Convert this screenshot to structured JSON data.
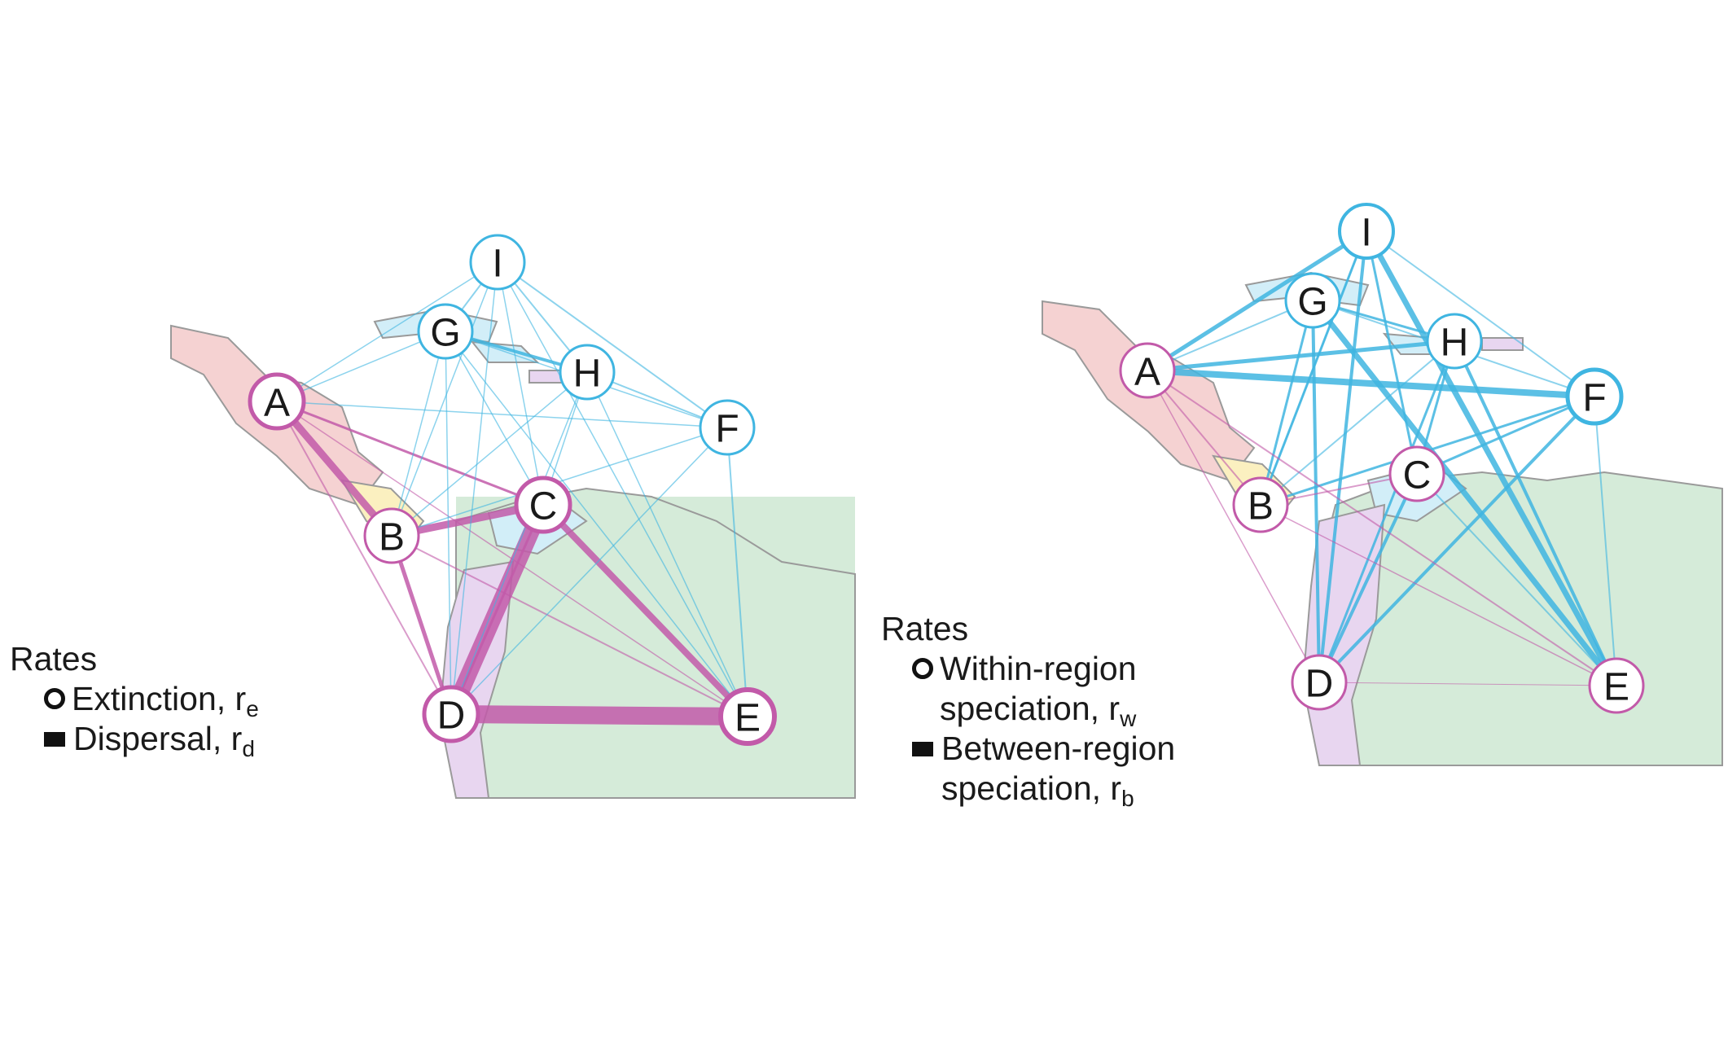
{
  "colors": {
    "purple": "#c25aa9",
    "blue": "#3fb5e1",
    "land_green": "#d5ebd9",
    "land_pink": "#f5d2d2",
    "land_yellow": "#fbf0c0",
    "land_lilac": "#e8d6f0",
    "land_cyan": "#d2eef8",
    "land_outline": "#9a9a9a"
  },
  "panels": [
    {
      "id": "left",
      "nodes": [
        {
          "label": "A",
          "color": "purple"
        },
        {
          "label": "B",
          "color": "purple"
        },
        {
          "label": "C",
          "color": "purple"
        },
        {
          "label": "D",
          "color": "purple"
        },
        {
          "label": "E",
          "color": "purple"
        },
        {
          "label": "F",
          "color": "blue"
        },
        {
          "label": "G",
          "color": "blue"
        },
        {
          "label": "H",
          "color": "blue"
        },
        {
          "label": "I",
          "color": "blue"
        }
      ],
      "legend": {
        "title": "Rates",
        "items": [
          {
            "symbol": "circle",
            "text": "Extinction, r",
            "sub": "e"
          },
          {
            "symbol": "square",
            "text": "Dispersal, r",
            "sub": "d"
          }
        ]
      }
    },
    {
      "id": "right",
      "nodes": [
        {
          "label": "A",
          "color": "purple"
        },
        {
          "label": "B",
          "color": "purple"
        },
        {
          "label": "C",
          "color": "purple"
        },
        {
          "label": "D",
          "color": "purple"
        },
        {
          "label": "E",
          "color": "purple"
        },
        {
          "label": "F",
          "color": "blue"
        },
        {
          "label": "G",
          "color": "blue"
        },
        {
          "label": "H",
          "color": "blue"
        },
        {
          "label": "I",
          "color": "blue"
        }
      ],
      "legend": {
        "title": "Rates",
        "items": [
          {
            "symbol": "circle",
            "text": "Within-region",
            "text2": "speciation, r",
            "sub": "w"
          },
          {
            "symbol": "square",
            "text": "Between-region",
            "text2": "speciation, r",
            "sub": "b"
          }
        ]
      }
    }
  ]
}
